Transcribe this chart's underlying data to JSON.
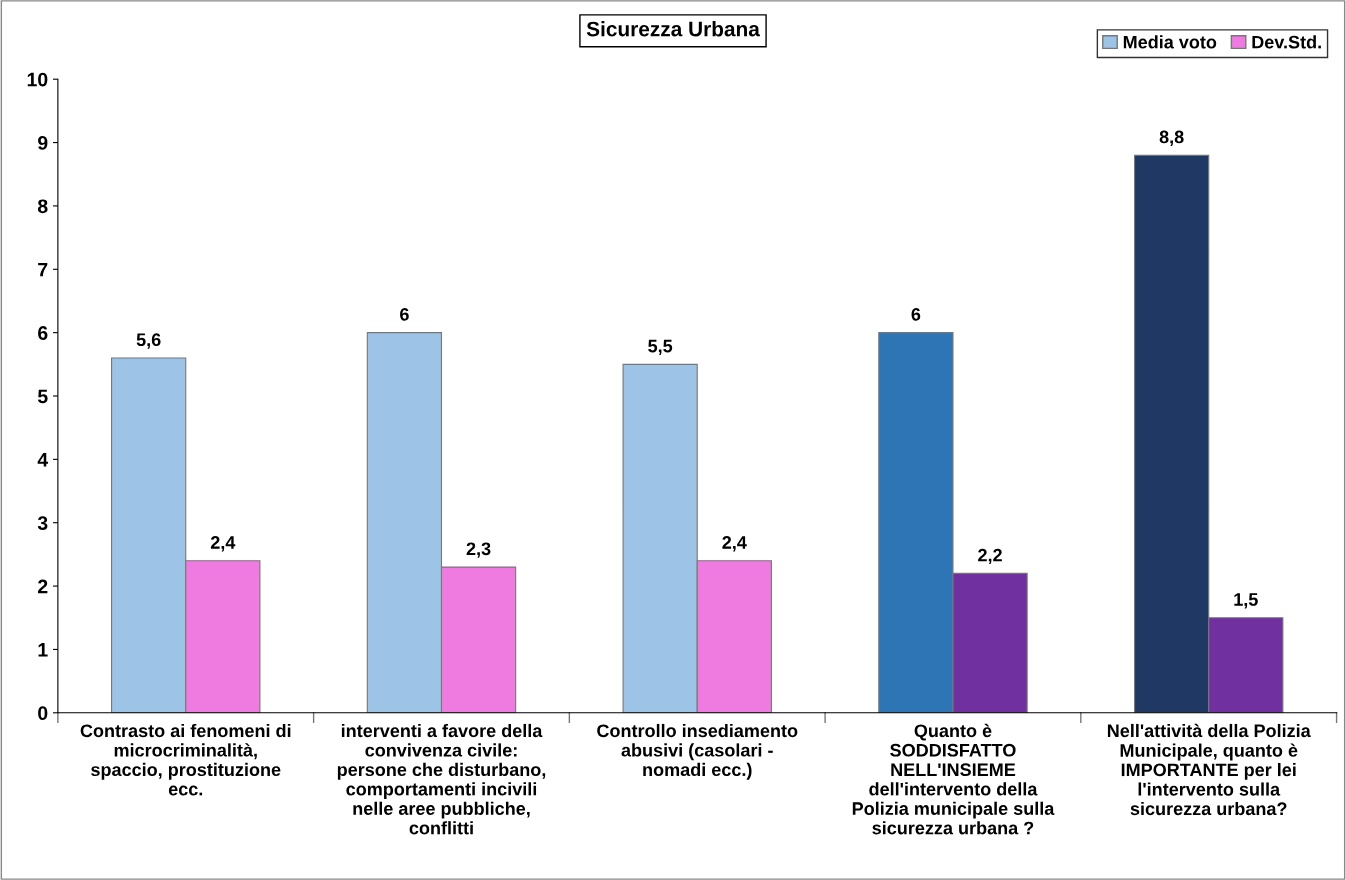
{
  "chart_data": {
    "type": "bar",
    "title": "Sicurezza Urbana",
    "categories": [
      "Contrasto ai fenomeni di\nmicrocriminalità,\nspaccio, prostituzione\necc.",
      "interventi a favore della\nconvivenza civile:\npersone che disturbano,\ncomportamenti incivili\nnelle aree pubbliche,\nconflitti",
      "Controllo insediamento\nabusivi (casolari -\nnomadi ecc.)",
      "Quanto è\nSODDISFATTO\nNELL'INSIEME\ndell'intervento della\nPolizia municipale sulla\nsicurezza urbana ?",
      "Nell'attività della Polizia\nMunicipale, quanto è\nIMPORTANTE per lei\nl'intervento sulla\nsicurezza urbana?"
    ],
    "series": [
      {
        "name": "Media voto",
        "color": "#9dc3e6",
        "colors": [
          "#9dc3e6",
          "#9dc3e6",
          "#9dc3e6",
          "#2e75b6",
          "#1f3864"
        ],
        "values": [
          5.6,
          6,
          5.5,
          6,
          8.8
        ],
        "value_labels": [
          "5,6",
          "6",
          "5,5",
          "6",
          "8,8"
        ]
      },
      {
        "name": "Dev.Std.",
        "color": "#f07be0",
        "colors": [
          "#f07be0",
          "#f07be0",
          "#f07be0",
          "#7030a0",
          "#7030a0"
        ],
        "values": [
          2.4,
          2.3,
          2.4,
          2.2,
          1.5
        ],
        "value_labels": [
          "2,4",
          "2,3",
          "2,4",
          "2,2",
          "1,5"
        ]
      }
    ],
    "ylim": [
      0,
      10
    ],
    "yticks": [
      0,
      1,
      2,
      3,
      4,
      5,
      6,
      7,
      8,
      9,
      10
    ],
    "grid": false,
    "legend": "top right"
  }
}
